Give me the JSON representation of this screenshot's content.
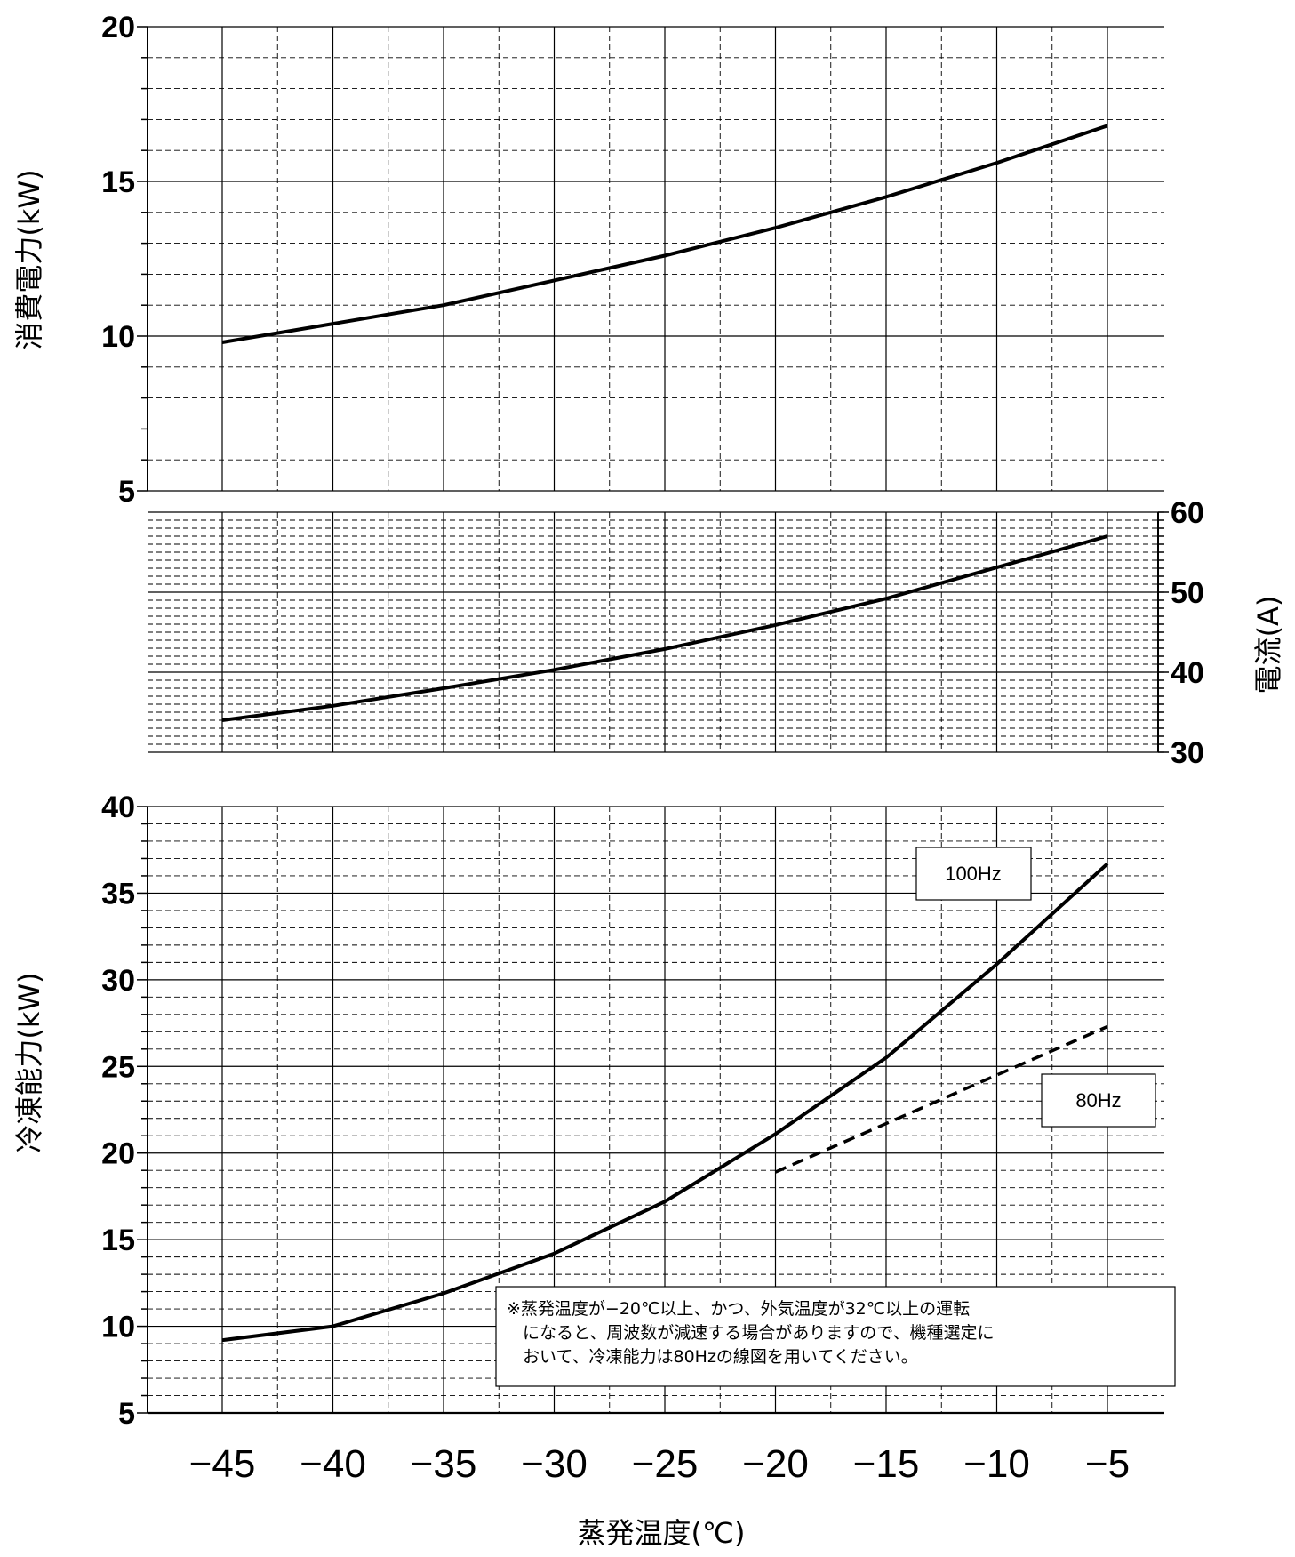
{
  "chart_data": [
    {
      "type": "line",
      "panel": "power",
      "ylabel": "消費電力(kW)",
      "ylim": [
        5,
        20
      ],
      "yticks": [
        5,
        10,
        15,
        20
      ],
      "x": [
        -45,
        -40,
        -35,
        -30,
        -25,
        -20,
        -15,
        -10,
        -5
      ],
      "series": [
        {
          "values": [
            9.8,
            10.4,
            11.0,
            11.8,
            12.6,
            13.5,
            14.5,
            15.6,
            16.8
          ],
          "style": "solid"
        }
      ]
    },
    {
      "type": "line",
      "panel": "current",
      "ylabel": "電流(A)",
      "ylim": [
        30,
        60
      ],
      "yticks": [
        30,
        40,
        50,
        60
      ],
      "x": [
        -45,
        -40,
        -35,
        -30,
        -25,
        -20,
        -15,
        -10,
        -5
      ],
      "series": [
        {
          "values": [
            34.0,
            35.8,
            38.0,
            40.3,
            42.9,
            45.9,
            49.2,
            53.1,
            57.0
          ],
          "style": "solid"
        }
      ]
    },
    {
      "type": "line",
      "panel": "capacity",
      "ylabel": "冷凍能力(kW)",
      "xlabel": "蒸発温度(℃)",
      "ylim": [
        5,
        40
      ],
      "yticks": [
        5,
        10,
        15,
        20,
        25,
        30,
        35,
        40
      ],
      "x": [
        -45,
        -40,
        -35,
        -30,
        -25,
        -20,
        -15,
        -10,
        -5
      ],
      "xticks": [
        "−45",
        "−40",
        "−35",
        "−30",
        "−25",
        "−20",
        "−15",
        "−10",
        "−5"
      ],
      "series": [
        {
          "name": "100Hz",
          "x": [
            -45,
            -40,
            -35,
            -30,
            -25,
            -20,
            -15,
            -10,
            -5
          ],
          "values": [
            9.2,
            10.0,
            11.9,
            14.2,
            17.2,
            21.1,
            25.5,
            30.9,
            36.7
          ],
          "style": "solid"
        },
        {
          "name": "80Hz",
          "x": [
            -20,
            -5
          ],
          "values": [
            18.9,
            27.3
          ],
          "style": "dashed"
        }
      ],
      "note": [
        "※蒸発温度が−20℃以上、かつ、外気温度が32℃以上の運転",
        "になると、周波数が減速する場合がありますので、機種選定に",
        "おいて、冷凍能力は80Hzの線図を用いてください。"
      ]
    }
  ],
  "colors": {
    "line": "#000000",
    "grid": "#000000",
    "background": "#ffffff"
  }
}
